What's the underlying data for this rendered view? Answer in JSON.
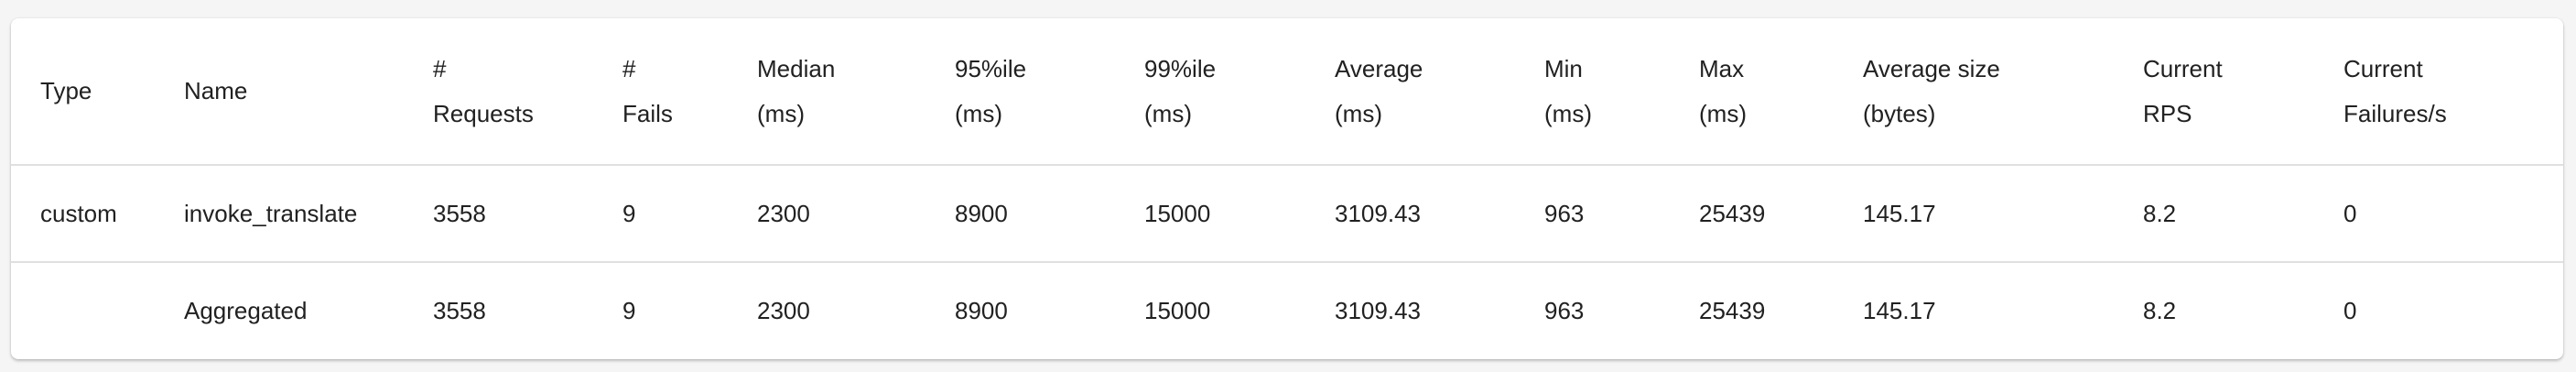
{
  "table": {
    "columns": [
      {
        "key": "type",
        "lines": [
          "Type"
        ]
      },
      {
        "key": "name",
        "lines": [
          "Name"
        ]
      },
      {
        "key": "requests",
        "lines": [
          "#",
          "Requests"
        ]
      },
      {
        "key": "fails",
        "lines": [
          "#",
          "Fails"
        ]
      },
      {
        "key": "median",
        "lines": [
          "Median",
          "(ms)"
        ]
      },
      {
        "key": "p95",
        "lines": [
          "95%ile",
          "(ms)"
        ]
      },
      {
        "key": "p99",
        "lines": [
          "99%ile",
          "(ms)"
        ]
      },
      {
        "key": "average",
        "lines": [
          "Average",
          "(ms)"
        ]
      },
      {
        "key": "min",
        "lines": [
          "Min",
          "(ms)"
        ]
      },
      {
        "key": "max",
        "lines": [
          "Max",
          "(ms)"
        ]
      },
      {
        "key": "avg_size",
        "lines": [
          "Average size",
          "(bytes)"
        ]
      },
      {
        "key": "rps",
        "lines": [
          "Current",
          "RPS"
        ]
      },
      {
        "key": "failures_s",
        "lines": [
          "Current",
          "Failures/s"
        ]
      }
    ],
    "rows": [
      {
        "type": "custom",
        "name": "invoke_translate",
        "requests": "3558",
        "fails": "9",
        "median": "2300",
        "p95": "8900",
        "p99": "15000",
        "average": "3109.43",
        "min": "963",
        "max": "25439",
        "avg_size": "145.17",
        "rps": "8.2",
        "failures_s": "0"
      },
      {
        "type": "",
        "name": "Aggregated",
        "requests": "3558",
        "fails": "9",
        "median": "2300",
        "p95": "8900",
        "p99": "15000",
        "average": "3109.43",
        "min": "963",
        "max": "25439",
        "avg_size": "145.17",
        "rps": "8.2",
        "failures_s": "0"
      }
    ]
  }
}
